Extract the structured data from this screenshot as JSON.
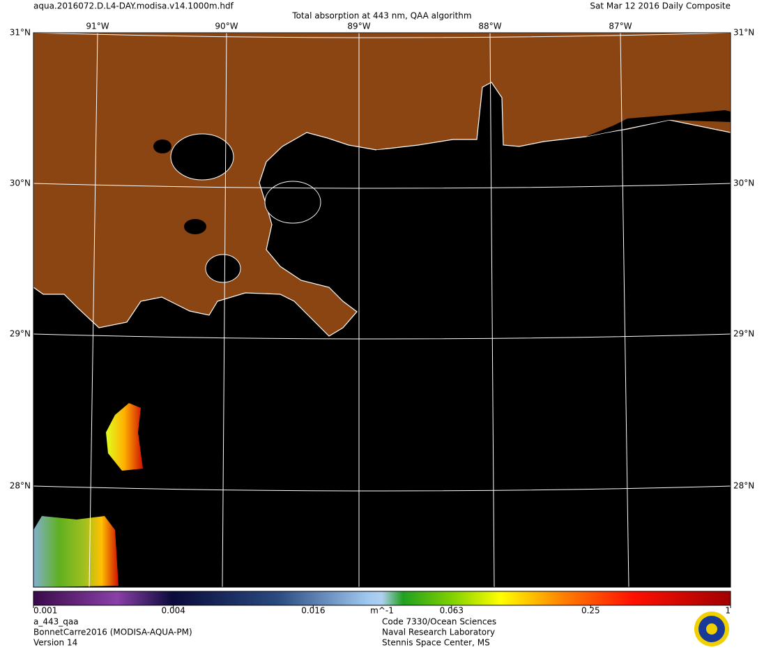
{
  "header": {
    "file": "aqua.2016072.D.L4-DAY.modisa.v14.1000m.hdf",
    "title": "Total absorption at 443 nm, QAA algorithm",
    "date": "Sat Mar 12 2016 Daily Composite"
  },
  "map": {
    "lon_labels": [
      "91°W",
      "90°W",
      "89°W",
      "88°W",
      "87°W"
    ],
    "lat_labels": [
      "31°N",
      "30°N",
      "29°N",
      "28°N"
    ]
  },
  "colorbar": {
    "lim": [
      0.001,
      1
    ],
    "log": true,
    "ticks": [
      0.001,
      0.004,
      0.016,
      0.063,
      0.25,
      1
    ],
    "unit": "m^-1"
  },
  "footer": {
    "left": [
      "a_443_qaa",
      "BonnetCarre2016 (MODISA-AQUA-PM)",
      "Version 14"
    ],
    "center": [
      "Code 7330/Ocean Sciences",
      "Naval Research Laboratory",
      "Stennis Space Center, MS"
    ]
  }
}
